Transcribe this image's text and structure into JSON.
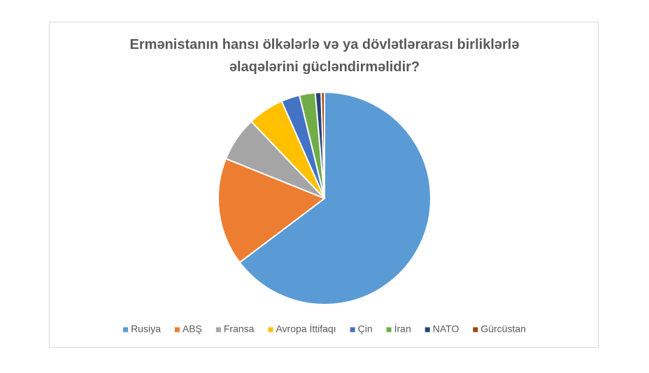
{
  "chart_data": {
    "type": "pie",
    "title": "Ermənistanın hansı ölkələrlə və ya dövlətlərarası birliklərlə əlaqələrini gücləndirməlidir?",
    "categories": [
      "Rusiya",
      "ABŞ",
      "Fransa",
      "Avropa İttifaqı",
      "Çin",
      "İran",
      "NATO",
      "Gürcüstan"
    ],
    "values": [
      64.7,
      16.4,
      6.8,
      5.5,
      2.8,
      2.4,
      0.9,
      0.5
    ],
    "colors": [
      "#5b9bd5",
      "#ed7d31",
      "#a5a5a5",
      "#ffc000",
      "#4472c4",
      "#70ad47",
      "#264478",
      "#9e480e"
    ],
    "legend": "bottom"
  }
}
